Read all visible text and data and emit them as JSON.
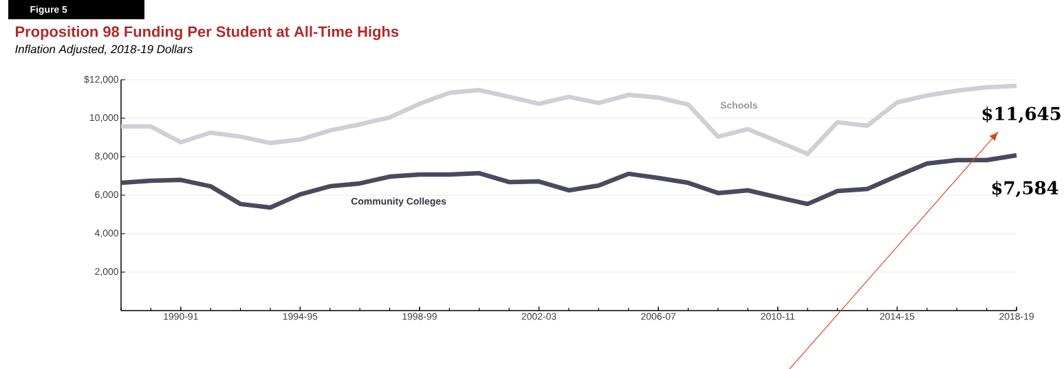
{
  "chart_data": {
    "type": "line",
    "title": "Proposition 98 Funding Per Student at All-Time Highs",
    "subtitle": "Inflation Adjusted, 2018-19 Dollars",
    "categories": [
      null,
      null,
      "1990-91",
      null,
      null,
      null,
      "1994-95",
      null,
      null,
      null,
      "1998-99",
      null,
      null,
      null,
      "2002-03",
      null,
      null,
      null,
      "2006-07",
      null,
      null,
      null,
      "2010-11",
      null,
      null,
      null,
      "2014-15",
      null,
      null,
      null,
      "2018-19"
    ],
    "series": [
      {
        "name": "Schools",
        "color": "#d0cfd6",
        "values": [
          9570,
          9570,
          8750,
          9250,
          9040,
          8710,
          8890,
          9360,
          9680,
          10040,
          10750,
          11320,
          11460,
          11110,
          10750,
          11110,
          10790,
          11210,
          11070,
          10710,
          9040,
          9430,
          8790,
          8140,
          9790,
          9610,
          10820,
          11180,
          11430,
          11610,
          11680
        ]
      },
      {
        "name": "Community Colleges",
        "color": "#4a4a5e",
        "values": [
          6640,
          6750,
          6790,
          6460,
          5540,
          5360,
          6040,
          6460,
          6610,
          6960,
          7070,
          7070,
          7140,
          6680,
          6710,
          6250,
          6500,
          7110,
          6890,
          6640,
          6110,
          6250,
          5890,
          5540,
          6210,
          6320,
          7000,
          7640,
          7820,
          7820,
          8070
        ]
      }
    ],
    "ylim": [
      0,
      12000
    ],
    "yticks": [
      {
        "value": 2000,
        "label": "2,000"
      },
      {
        "value": 4000,
        "label": "4,000"
      },
      {
        "value": 6000,
        "label": "6,000"
      },
      {
        "value": 8000,
        "label": "8,000"
      },
      {
        "value": 10000,
        "label": "10,000"
      },
      {
        "value": 12000,
        "label": "$12,000"
      }
    ],
    "grid": "y",
    "legend": false,
    "marker": "none",
    "line_style": "solid",
    "annotations": [
      "Figure 5",
      "$11,645",
      "$7,584"
    ]
  }
}
